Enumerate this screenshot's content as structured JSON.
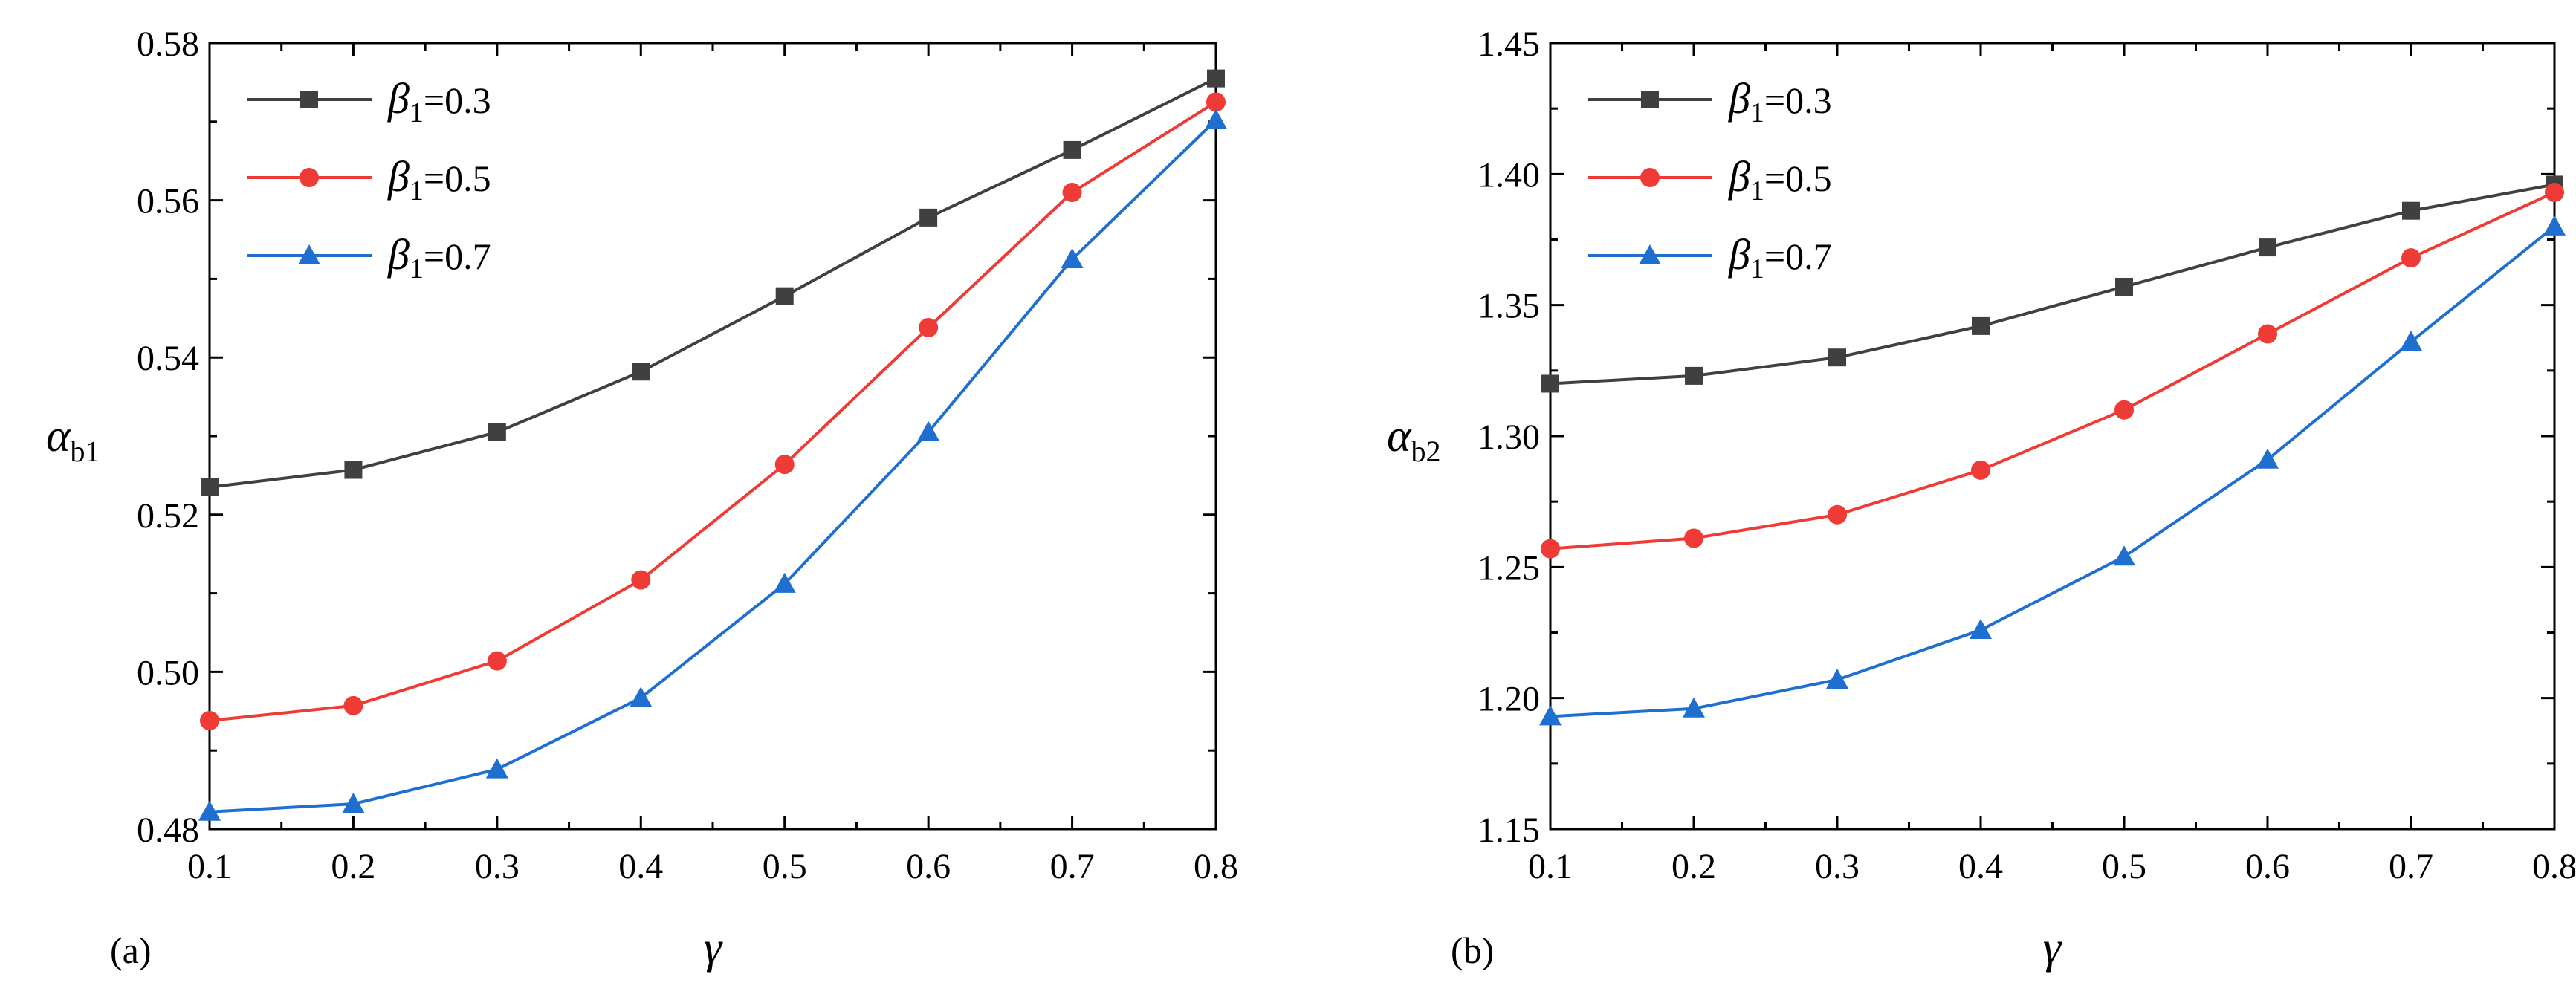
{
  "chart_data": [
    {
      "type": "line",
      "panel_label": "(a)",
      "xlabel": "γ",
      "ylabel": {
        "symbol": "α",
        "subscript": "b1"
      },
      "x": [
        0.1,
        0.2,
        0.3,
        0.4,
        0.5,
        0.6,
        0.7,
        0.8
      ],
      "xlim": [
        0.1,
        0.8
      ],
      "ylim": [
        0.48,
        0.58
      ],
      "xticks": [
        "0.1",
        "0.2",
        "0.3",
        "0.4",
        "0.5",
        "0.6",
        "0.7",
        "0.8"
      ],
      "yticks": [
        "0.48",
        "0.50",
        "0.52",
        "0.54",
        "0.56",
        "0.58"
      ],
      "legend_position": "top-left",
      "series": [
        {
          "name": "β1=0.3",
          "symbol": "β",
          "subscript": "1",
          "value_text": "=0.3",
          "color": "#404040",
          "marker": "square",
          "values": [
            0.5235,
            0.5257,
            0.5305,
            0.5382,
            0.5478,
            0.5578,
            0.5664,
            0.5755
          ]
        },
        {
          "name": "β1=0.5",
          "symbol": "β",
          "subscript": "1",
          "value_text": "=0.5",
          "color": "#ef3b36",
          "marker": "circle",
          "values": [
            0.4938,
            0.4957,
            0.5014,
            0.5117,
            0.5264,
            0.5438,
            0.561,
            0.5725
          ]
        },
        {
          "name": "β1=0.7",
          "symbol": "β",
          "subscript": "1",
          "value_text": "=0.7",
          "color": "#1f6fd1",
          "marker": "triangle",
          "values": [
            0.4822,
            0.4832,
            0.4876,
            0.4967,
            0.5112,
            0.5305,
            0.5525,
            0.5702
          ]
        }
      ]
    },
    {
      "type": "line",
      "panel_label": "(b)",
      "xlabel": "γ",
      "ylabel": {
        "symbol": "α",
        "subscript": "b2"
      },
      "x": [
        0.1,
        0.2,
        0.3,
        0.4,
        0.5,
        0.6,
        0.7,
        0.8
      ],
      "xlim": [
        0.1,
        0.8
      ],
      "ylim": [
        1.15,
        1.45
      ],
      "xticks": [
        "0.1",
        "0.2",
        "0.3",
        "0.4",
        "0.5",
        "0.6",
        "0.7",
        "0.8"
      ],
      "yticks": [
        "1.15",
        "1.20",
        "1.25",
        "1.30",
        "1.35",
        "1.40",
        "1.45"
      ],
      "legend_position": "top-left",
      "series": [
        {
          "name": "β1=0.3",
          "symbol": "β",
          "subscript": "1",
          "value_text": "=0.3",
          "color": "#404040",
          "marker": "square",
          "values": [
            1.32,
            1.323,
            1.33,
            1.342,
            1.357,
            1.372,
            1.386,
            1.396
          ]
        },
        {
          "name": "β1=0.5",
          "symbol": "β",
          "subscript": "1",
          "value_text": "=0.5",
          "color": "#ef3b36",
          "marker": "circle",
          "values": [
            1.257,
            1.261,
            1.27,
            1.287,
            1.31,
            1.339,
            1.368,
            1.393
          ]
        },
        {
          "name": "β1=0.7",
          "symbol": "β",
          "subscript": "1",
          "value_text": "=0.7",
          "color": "#1f6fd1",
          "marker": "triangle",
          "values": [
            1.193,
            1.196,
            1.207,
            1.226,
            1.254,
            1.291,
            1.336,
            1.38
          ]
        }
      ]
    }
  ]
}
